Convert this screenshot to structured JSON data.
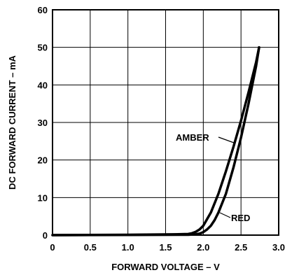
{
  "chart_data": {
    "type": "line",
    "title": "",
    "xlabel": "FORWARD VOLTAGE – V",
    "ylabel": "DC FORWARD CURRENT – mA",
    "xlim": [
      0,
      3.0
    ],
    "ylim": [
      0,
      60
    ],
    "x_ticks": [
      "0",
      "0.5",
      "1.0",
      "1.5",
      "2.0",
      "2.5",
      "3.0"
    ],
    "y_ticks": [
      "0",
      "10",
      "20",
      "30",
      "40",
      "50",
      "60"
    ],
    "grid": true,
    "series": [
      {
        "name": "AMBER",
        "x": [
          0,
          1.0,
          1.6,
          1.8,
          1.85,
          1.9,
          1.95,
          2.0,
          2.1,
          2.2,
          2.3,
          2.4,
          2.5,
          2.6,
          2.7,
          2.74
        ],
        "y": [
          0,
          0.1,
          0.2,
          0.3,
          0.5,
          0.9,
          1.5,
          2.5,
          6,
          11,
          17,
          23.5,
          30.5,
          38,
          46,
          50
        ]
      },
      {
        "name": "RED",
        "x": [
          0,
          1.0,
          1.8,
          1.9,
          1.95,
          2.0,
          2.05,
          2.1,
          2.15,
          2.2,
          2.3,
          2.4,
          2.5,
          2.6,
          2.7,
          2.74
        ],
        "y": [
          0,
          0.05,
          0.1,
          0.2,
          0.4,
          0.8,
          1.5,
          2.5,
          4,
          6,
          11,
          18,
          26,
          35,
          45,
          50
        ]
      }
    ]
  }
}
